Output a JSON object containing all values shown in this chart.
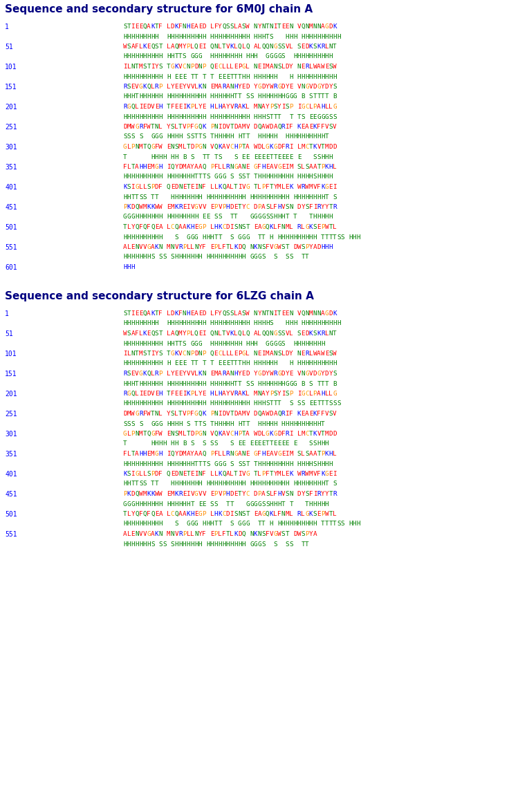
{
  "title1": "Sequence and secondary structure for 6M0J chain A",
  "title2": "Sequence and secondary structure for 6LZG chain A",
  "bg_color": "#FFFFFF",
  "section1": [
    {
      "num": "1",
      "seq": "STIEEQAKTF LDKFNHEAED LFYQSSLASW NYNTNITEEN VQNMNNAGDK",
      "ss": "HHHHHHHHH  HHHHHHHHHH HHHHHHHHHH HHHTS   HHH HHHHHHHHHH"
    },
    {
      "num": "51",
      "seq": "WSAFLKEQST LAQMYPLQEI QNLTVKLQLQ ALQQNGSSVL SEDKSKRLNT",
      "ss": "HHHHHHHHHH HHTTS GGG  HHHHHHHH HHH  GGGGS  HHHHHHHHHH"
    },
    {
      "num": "101",
      "seq": "ILNTMSTIYS TGKVCNPDNP QECLLLЕРGL NEIMANSLDY NERLWAWESW",
      "ss": "HHHHHHHHHH H EEE TT T T EEETTTHH HHHHHH   H HHHHHHHHHH"
    },
    {
      "num": "151",
      "seq": "RSEVGKQLRP LYEEYVVLKN EMARANHYED YGDYWRGDYE VNGVDGYDYS",
      "ss": "HHHTHHHHHH HHHHHHHHHH HHHHHHTT SS HHHHHHHGGG B STTTT B "
    },
    {
      "num": "201",
      "seq": "RGQLIEDVEH TFEEIKPLYE HLHAYVRAKL MNAYPSYISP IGCLPAHLLG",
      "ss": "HHHHHHHHHH HHHHHHHHHH HHHHHHHHHH HHHSTTT  T TS EEGGGSS "
    },
    {
      "num": "251",
      "seq": "DMWGRFWTNL YSLTVPFGQK PNIDVTDAMV DQAWDAQRIF KEAEKFFVSV",
      "ss": "SSS S  GGG HHHH SSTTS THHHHH HTT  HHHHH  HHHHHHHHHHT"
    },
    {
      "num": "301",
      "seq": "GLPNMTQGFW ENSMLTDPGN VQKAVCHPTA WDLGKGDFRI LMCTKVTMDD",
      "ss": "T      HHHH HH B S  TT TS   S EE EEEETTEEEE E   SSHHH"
    },
    {
      "num": "351",
      "seq": "FLTAHHEMGH IQYDMAYAAQ PFLLRNGANE GFHEAVGEIM SLSAATPKHL",
      "ss": "HHHHHHHHHH HHHHHHHTTTS GGG S SST THHHHHHHHH HHHHSHHHH"
    },
    {
      "num": "401",
      "seq": "KSIGLLSPDF QEDNETEINF LLKQALTIVG TLPFTYMLEK WRWMVFKGEI",
      "ss": "HHTTSS TT   HHHHHHHH HHHHHHHHHH HHHHHHHHHH HHHHHHHHT S"
    },
    {
      "num": "451",
      "seq": "PKDQWMKKWW EMKREIVGVV EPVPHDETYC DPASLFHVSN DYSFIRYYTR",
      "ss": "GGGHHHHHHH HHHHHHHH EE SS  TT   GGGGSSHHHT T   THHHHH"
    },
    {
      "num": "501",
      "seq": "TLYQFQFQEA LCQAAKHEGP LHKCDISNST EAGQKLFNML RLGKSEPWTL",
      "ss": "HHHHHHHHHH   S  GGG HHHTT  S GGG  TT H HHHHHHHHHH TTTTSS HHH"
    },
    {
      "num": "551",
      "seq": "ALENVVGAKN MNVRPLLNYF EPLFTLKDQ NKNSFVGWST DWSPYADHHH",
      "ss": "HHHHHHHS SS SHHHHHHH HHHHHHHHHH GGGS  S  SS  TT"
    },
    {
      "num": "601",
      "seq": "HHH",
      "ss": ""
    }
  ],
  "section2": [
    {
      "num": "1",
      "seq": "STIEEQAKTF LDKFNHEAED LFYQSSLASW NYNTNITEEN VQNMNNAGDK",
      "ss": "HHHHHHHHH  HHHHHHHHHH HHHHHHHHHH HHHHS   HHH HHHHHHHHHH"
    },
    {
      "num": "51",
      "seq": "WSAFLKEQST LAQMYPLQEI QNLTVKLQLQ ALQQNGSSVL SEDKSKRLNT",
      "ss": "HHHHHHHHHH HHTTS GGG  HHHHHHHH HHH  GGGGS  HHHHHHHH"
    },
    {
      "num": "101",
      "seq": "ILNTMSTIYS TGKVCNPDNP QECLLLЕРGL NEIMANSLDY NERLWAWESW",
      "ss": "HHHHHHHHHH H EEE TT T T EEETTTHH HHHHHH   H HHHHHHHHHH"
    },
    {
      "num": "151",
      "seq": "RSEVGKQLRP LYEEYVVLKN EMARANHYED YGDYWRGDYE VNGVDGYDYS",
      "ss": "HHHTHHHHHH HHHHHHHHHH HHHHHHTT SS HHHHHHHGGG B S TTT B"
    },
    {
      "num": "201",
      "seq": "RGQLIEDVEH TFEEIKPLYE HLHAYVRAKL MNAYPSYISP IGCLPAHLLG",
      "ss": "HHHHHHHHHH HHHHHHHHHH HHHHHHHHHH HHHSTTT  S SS EETTTSSS"
    },
    {
      "num": "251",
      "seq": "DMWGRFWTNL YSLTVPFGQK PNIDVTDAMV DQAWDAQRIF KEAEKFFVSV",
      "ss": "SSS S  GGG HHHH S TTS THHHHH HTT  HHHHH HHHHHHHHHHT"
    },
    {
      "num": "301",
      "seq": "GLPNMTQGFW ENSMLTDPGN VQKAVCHPTA WDLGKGDFRI LMCTKVTMDD",
      "ss": "T      HHHH HH B S  S SS   S EE EEEETTEEEE E   SSHHH"
    },
    {
      "num": "351",
      "seq": "FLTAHHEMGH IQYDMAYAAQ PFLLRNGANE GFHEAVGEIM SLSAATPKHL",
      "ss": "HHHHHHHHHH HHHHHHHTTTS GGG S SST THHHHHHHHH HHHHSHHHH"
    },
    {
      "num": "401",
      "seq": "KSIGLLSPDF QEDNETEINF LLKQALTIVG TLPFTYMLEK WRWMVFKGEI",
      "ss": "HHTTSS TT   HHHHHHHH HHHHHHHHHH HHHHHHHHHH HHHHHHHHT S"
    },
    {
      "num": "451",
      "seq": "PKDQWMKKWW EMKREIVGVV EPVPHDETYC DPASLFHVSN DYSFIRYYTR",
      "ss": "GGGHHHHHHH HHHHHHT EE SS  TT   GGGGSSHHHT T   THHHHH"
    },
    {
      "num": "501",
      "seq": "TLYQFQFQEA LCQAAKHEGP LHKCDISNST EAGQKLFNML RLGKSEPWTL",
      "ss": "HHHHHHHHHH   S  GGG HHHTT  S GGG  TT H HHHHHHHHHH TTTTSS HHH"
    },
    {
      "num": "551",
      "seq": "ALENVVGAKN MNVRPLLNYF EPLFTLKDQ NKNSFVGWST DWSPYA",
      "ss": "HHHHHHHS SS SHHHHHHH HHHHHHHHHH GGGS  S  SS  TT"
    }
  ]
}
